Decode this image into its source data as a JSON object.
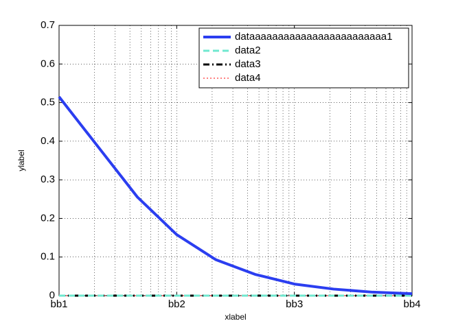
{
  "chart_data": {
    "type": "line",
    "xlabel": "xlabel",
    "ylabel": "ylabel",
    "x": [
      1,
      2.154,
      4.642,
      10,
      21.54,
      46.42,
      100,
      215.4,
      464.2,
      1000
    ],
    "xscale": "log",
    "xlim": [
      1,
      1000
    ],
    "xticks": [
      {
        "value": 1,
        "label": "bb1"
      },
      {
        "value": 10,
        "label": "bb2"
      },
      {
        "value": 100,
        "label": "bb3"
      },
      {
        "value": 1000,
        "label": "bb4"
      }
    ],
    "ylim": [
      0,
      0.7
    ],
    "yticks": [
      0,
      0.1,
      0.2,
      0.3,
      0.4,
      0.5,
      0.6,
      0.7
    ],
    "grid": true,
    "legend": "top-right",
    "series": [
      {
        "name": "dataaaaaaaaaaaaaaaaaaaaaaaa1",
        "color": "#2b3ef0",
        "line_style": "solid",
        "values": [
          0.515,
          0.385,
          0.255,
          0.158,
          0.093,
          0.055,
          0.03,
          0.017,
          0.009,
          0.005
        ]
      },
      {
        "name": "data2",
        "color": "#6fe8cf",
        "line_style": "dashed",
        "values": [
          0,
          0,
          0,
          0,
          0,
          0,
          0,
          0,
          0,
          0
        ]
      },
      {
        "name": "data3",
        "color": "#000000",
        "line_style": "dashdot",
        "values": [
          0,
          0,
          0,
          0,
          0,
          0,
          0,
          0,
          0,
          0
        ]
      },
      {
        "name": "data4",
        "color": "#ff0000",
        "line_style": "dotted",
        "values": [
          0,
          0,
          0,
          0,
          0,
          0,
          0,
          0,
          0,
          0
        ]
      }
    ]
  }
}
